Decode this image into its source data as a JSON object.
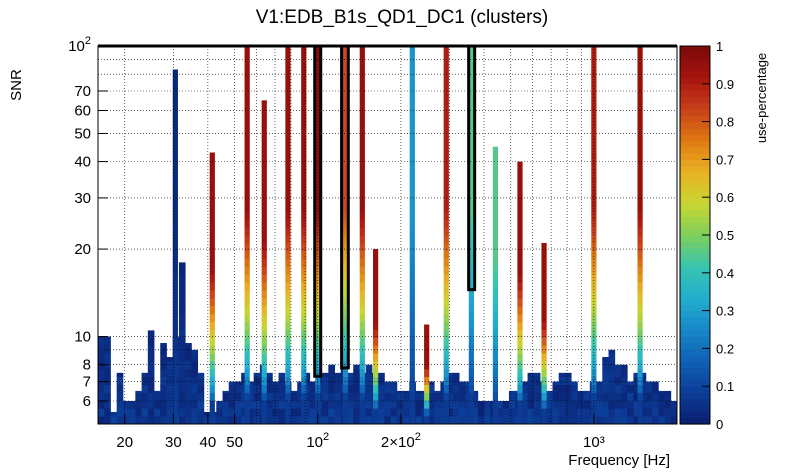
{
  "chart_data": {
    "type": "heatmap",
    "title": "V1:EDB_B1s_QD1_DC1 (clusters)",
    "xlabel": "Frequency [Hz]",
    "ylabel": "SNR",
    "colorbar_label": "use-percentage",
    "x_scale": "log",
    "y_scale": "log",
    "xlim": [
      16,
      2000
    ],
    "ylim": [
      5,
      100
    ],
    "zlim": [
      0,
      1
    ],
    "x_tick_labels": [
      {
        "value": 20,
        "label": "20"
      },
      {
        "value": 30,
        "label": "30"
      },
      {
        "value": 40,
        "label": "40"
      },
      {
        "value": 50,
        "label": "50"
      },
      {
        "value": 100,
        "label": "10²"
      },
      {
        "value": 200,
        "label": "2×10²"
      },
      {
        "value": 1000,
        "label": "10³"
      }
    ],
    "y_tick_labels": [
      {
        "value": 6,
        "label": "6"
      },
      {
        "value": 7,
        "label": "7"
      },
      {
        "value": 8,
        "label": "8"
      },
      {
        "value": 10,
        "label": "10"
      },
      {
        "value": 20,
        "label": "20"
      },
      {
        "value": 30,
        "label": "30"
      },
      {
        "value": 40,
        "label": "40"
      },
      {
        "value": 50,
        "label": "50"
      },
      {
        "value": 60,
        "label": "60"
      },
      {
        "value": 70,
        "label": "70"
      },
      {
        "value": 100,
        "label": "10²"
      }
    ],
    "colorbar_ticks": [
      "0",
      "0.1",
      "0.2",
      "0.3",
      "0.4",
      "0.5",
      "0.6",
      "0.7",
      "0.8",
      "0.9",
      "1"
    ],
    "palette": [
      "#0a1e6e",
      "#0c3c96",
      "#0f5fb4",
      "#1788c8",
      "#22aecd",
      "#38c4b0",
      "#7ecf5a",
      "#c8d632",
      "#e8b224",
      "#df7a12",
      "#c8401a",
      "#a8140f",
      "#7a0a08"
    ],
    "background_max_snr": [
      10,
      10,
      5.5,
      7.5,
      6,
      6,
      6.5,
      7.5,
      10.5,
      6.5,
      9.5,
      8.5,
      10,
      18,
      9.5,
      9,
      7.5,
      5.5,
      5.5,
      6,
      6.5,
      7,
      7,
      7.5,
      7,
      7.5,
      8,
      7.5,
      7,
      7.5,
      7,
      6.5,
      7,
      7.5,
      7,
      7.5,
      7.5,
      8,
      7.5,
      8,
      7.5,
      8,
      7.5,
      8,
      7.5,
      7.5,
      7,
      7,
      6.5,
      6.5,
      7,
      6.5,
      6.5,
      7,
      6.5,
      7,
      7.5,
      7.5,
      7,
      7,
      6.5,
      6,
      6,
      6,
      6,
      6,
      6.5,
      6.5,
      7,
      7.5,
      7.5,
      7,
      6.5,
      7,
      7.5,
      7.5,
      7,
      6.5,
      6.5,
      7,
      7,
      8.5,
      9,
      8,
      8,
      7,
      7.5,
      7.5,
      7,
      7,
      6.5,
      6.5,
      6
    ],
    "lines": [
      {
        "freq": 30.5,
        "max_snr": 83,
        "use": 0.03
      },
      {
        "freq": 41.5,
        "max_snr": 43,
        "use": 0.95
      },
      {
        "freq": 55.5,
        "max_snr": 100,
        "use": 0.95
      },
      {
        "freq": 64,
        "max_snr": 65,
        "use": 0.95
      },
      {
        "freq": 78,
        "max_snr": 100,
        "use": 0.95
      },
      {
        "freq": 89,
        "max_snr": 100,
        "use": 0.95
      },
      {
        "freq": 100,
        "max_snr": 100,
        "use": 0.95
      },
      {
        "freq": 126,
        "max_snr": 100,
        "use": 0.82
      },
      {
        "freq": 145,
        "max_snr": 100,
        "use": 0.95
      },
      {
        "freq": 162,
        "max_snr": 20,
        "use": 0.95
      },
      {
        "freq": 220,
        "max_snr": 100,
        "use": 0.28
      },
      {
        "freq": 248,
        "max_snr": 11,
        "use": 0.95
      },
      {
        "freq": 292,
        "max_snr": 100,
        "use": 0.9
      },
      {
        "freq": 360,
        "max_snr": 100,
        "use": 0.45
      },
      {
        "freq": 440,
        "max_snr": 45,
        "use": 0.45
      },
      {
        "freq": 540,
        "max_snr": 40,
        "use": 0.95
      },
      {
        "freq": 660,
        "max_snr": 21,
        "use": 0.95
      },
      {
        "freq": 1000,
        "max_snr": 100,
        "use": 0.9
      },
      {
        "freq": 1470,
        "max_snr": 100,
        "use": 0.95
      }
    ],
    "selected_clusters": [
      {
        "f_min": 97.5,
        "f_max": 102.5,
        "snr_min": 7.3,
        "snr_max": 100
      },
      {
        "f_min": 122,
        "f_max": 129,
        "snr_min": 7.8,
        "snr_max": 100
      },
      {
        "f_min": 352,
        "f_max": 370,
        "snr_min": 14.5,
        "snr_max": 100
      }
    ]
  }
}
